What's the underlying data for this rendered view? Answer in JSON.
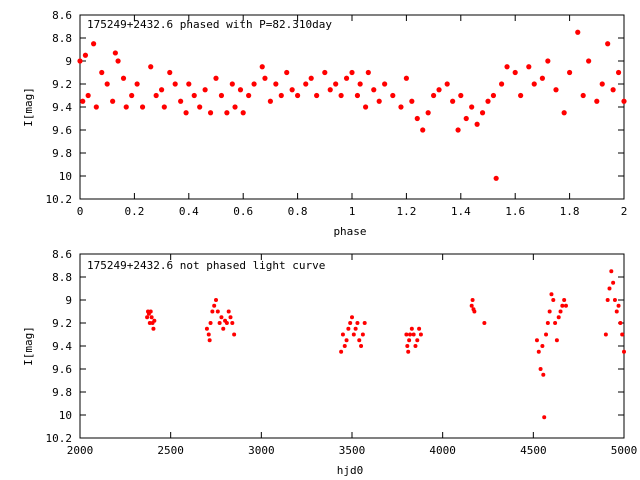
{
  "chart_data": [
    {
      "type": "scatter",
      "title": "175249+2432.6 phased with P=82.310day",
      "xlabel": "phase",
      "ylabel": "I[mag]",
      "xlim": [
        0,
        2
      ],
      "ylim": [
        10.2,
        8.6
      ],
      "y_inverted": true,
      "xticks": [
        "0",
        "0.2",
        "0.4",
        "0.6",
        "0.8",
        "1",
        "1.2",
        "1.4",
        "1.6",
        "1.8",
        "2"
      ],
      "yticks": [
        "8.6",
        "8.8",
        "9",
        "9.2",
        "9.4",
        "9.6",
        "9.8",
        "10",
        "10.2"
      ],
      "grid": false,
      "marker_color": "#ff0000",
      "series": [
        {
          "x": [
            0.0,
            0.01,
            0.02,
            0.03,
            0.05,
            0.06,
            0.08,
            0.1,
            0.12,
            0.13,
            0.14,
            0.16,
            0.17,
            0.19,
            0.21,
            0.23,
            0.26,
            0.28,
            0.3,
            0.31,
            0.33,
            0.35,
            0.37,
            0.39,
            0.4,
            0.42,
            0.44,
            0.46,
            0.48,
            0.5,
            0.52,
            0.54,
            0.56,
            0.57,
            0.59,
            0.6,
            0.62,
            0.64,
            0.67,
            0.68,
            0.7,
            0.72,
            0.74,
            0.76,
            0.78,
            0.8,
            0.83,
            0.85,
            0.87,
            0.9,
            0.92,
            0.94,
            0.96,
            0.98,
            1.0,
            1.02,
            1.03,
            1.05,
            1.06,
            1.08,
            1.1,
            1.12,
            1.15,
            1.18,
            1.2,
            1.22,
            1.24,
            1.26,
            1.28,
            1.3,
            1.32,
            1.35,
            1.37,
            1.39,
            1.4,
            1.42,
            1.44,
            1.46,
            1.48,
            1.5,
            1.52,
            1.53,
            1.55,
            1.57,
            1.6,
            1.62,
            1.65,
            1.67,
            1.7,
            1.72,
            1.75,
            1.78,
            1.8,
            1.83,
            1.85,
            1.87,
            1.9,
            1.92,
            1.94,
            1.96,
            1.98,
            2.0
          ],
          "y": [
            9.0,
            9.35,
            8.95,
            9.3,
            8.85,
            9.4,
            9.1,
            9.2,
            9.35,
            8.93,
            9.0,
            9.15,
            9.4,
            9.3,
            9.2,
            9.4,
            9.05,
            9.3,
            9.25,
            9.4,
            9.1,
            9.2,
            9.35,
            9.45,
            9.2,
            9.3,
            9.4,
            9.25,
            9.45,
            9.15,
            9.3,
            9.45,
            9.2,
            9.4,
            9.25,
            9.45,
            9.3,
            9.2,
            9.05,
            9.15,
            9.35,
            9.2,
            9.3,
            9.1,
            9.25,
            9.3,
            9.2,
            9.15,
            9.3,
            9.1,
            9.25,
            9.2,
            9.3,
            9.15,
            9.1,
            9.3,
            9.2,
            9.4,
            9.1,
            9.25,
            9.35,
            9.2,
            9.3,
            9.4,
            9.15,
            9.35,
            9.5,
            9.6,
            9.45,
            9.3,
            9.25,
            9.2,
            9.35,
            9.6,
            9.3,
            9.5,
            9.4,
            9.55,
            9.45,
            9.35,
            9.3,
            10.02,
            9.2,
            9.05,
            9.1,
            9.3,
            9.05,
            9.2,
            9.15,
            9.0,
            9.25,
            9.45,
            9.1,
            8.75,
            9.3,
            9.0,
            9.35,
            9.2,
            8.85,
            9.25,
            9.1,
            9.35
          ]
        }
      ]
    },
    {
      "type": "scatter",
      "title": "175249+2432.6 not phased light curve",
      "xlabel": "hjd0",
      "ylabel": "I[mag]",
      "xlim": [
        2000,
        5000
      ],
      "ylim": [
        10.2,
        8.6
      ],
      "y_inverted": true,
      "xticks": [
        "2000",
        "2500",
        "3000",
        "3500",
        "4000",
        "4500",
        "5000"
      ],
      "yticks": [
        "8.6",
        "8.8",
        "9",
        "9.2",
        "9.4",
        "9.6",
        "9.8",
        "10",
        "10.2"
      ],
      "grid": false,
      "marker_color": "#ff0000",
      "series": [
        {
          "x": [
            2370,
            2375,
            2380,
            2385,
            2390,
            2395,
            2400,
            2405,
            2410,
            2700,
            2710,
            2715,
            2720,
            2730,
            2740,
            2750,
            2760,
            2770,
            2780,
            2790,
            2800,
            2810,
            2820,
            2830,
            2840,
            2850,
            3440,
            3450,
            3460,
            3470,
            3480,
            3490,
            3500,
            3510,
            3520,
            3530,
            3540,
            3550,
            3560,
            3570,
            3800,
            3805,
            3810,
            3815,
            3820,
            3830,
            3840,
            3850,
            3860,
            3870,
            3880,
            4160,
            4165,
            4170,
            4175,
            4230,
            4520,
            4530,
            4540,
            4550,
            4555,
            4560,
            4570,
            4580,
            4590,
            4600,
            4610,
            4620,
            4630,
            4640,
            4650,
            4660,
            4670,
            4680,
            4900,
            4910,
            4920,
            4930,
            4940,
            4950,
            4960,
            4970,
            4980,
            4990,
            5000
          ],
          "y": [
            9.15,
            9.1,
            9.12,
            9.2,
            9.1,
            9.15,
            9.2,
            9.25,
            9.18,
            9.25,
            9.3,
            9.35,
            9.2,
            9.1,
            9.05,
            9.0,
            9.1,
            9.2,
            9.15,
            9.25,
            9.18,
            9.2,
            9.1,
            9.15,
            9.2,
            9.3,
            9.45,
            9.3,
            9.4,
            9.35,
            9.25,
            9.2,
            9.15,
            9.3,
            9.25,
            9.2,
            9.35,
            9.4,
            9.3,
            9.2,
            9.3,
            9.4,
            9.45,
            9.35,
            9.3,
            9.25,
            9.3,
            9.4,
            9.35,
            9.25,
            9.3,
            9.05,
            9.0,
            9.08,
            9.1,
            9.2,
            9.35,
            9.45,
            9.6,
            9.4,
            9.65,
            10.02,
            9.3,
            9.2,
            9.1,
            8.95,
            9.0,
            9.2,
            9.35,
            9.15,
            9.1,
            9.05,
            9.0,
            9.05,
            9.3,
            9.0,
            8.9,
            8.75,
            8.85,
            9.0,
            9.1,
            9.05,
            9.2,
            9.3,
            9.45
          ]
        }
      ]
    }
  ]
}
